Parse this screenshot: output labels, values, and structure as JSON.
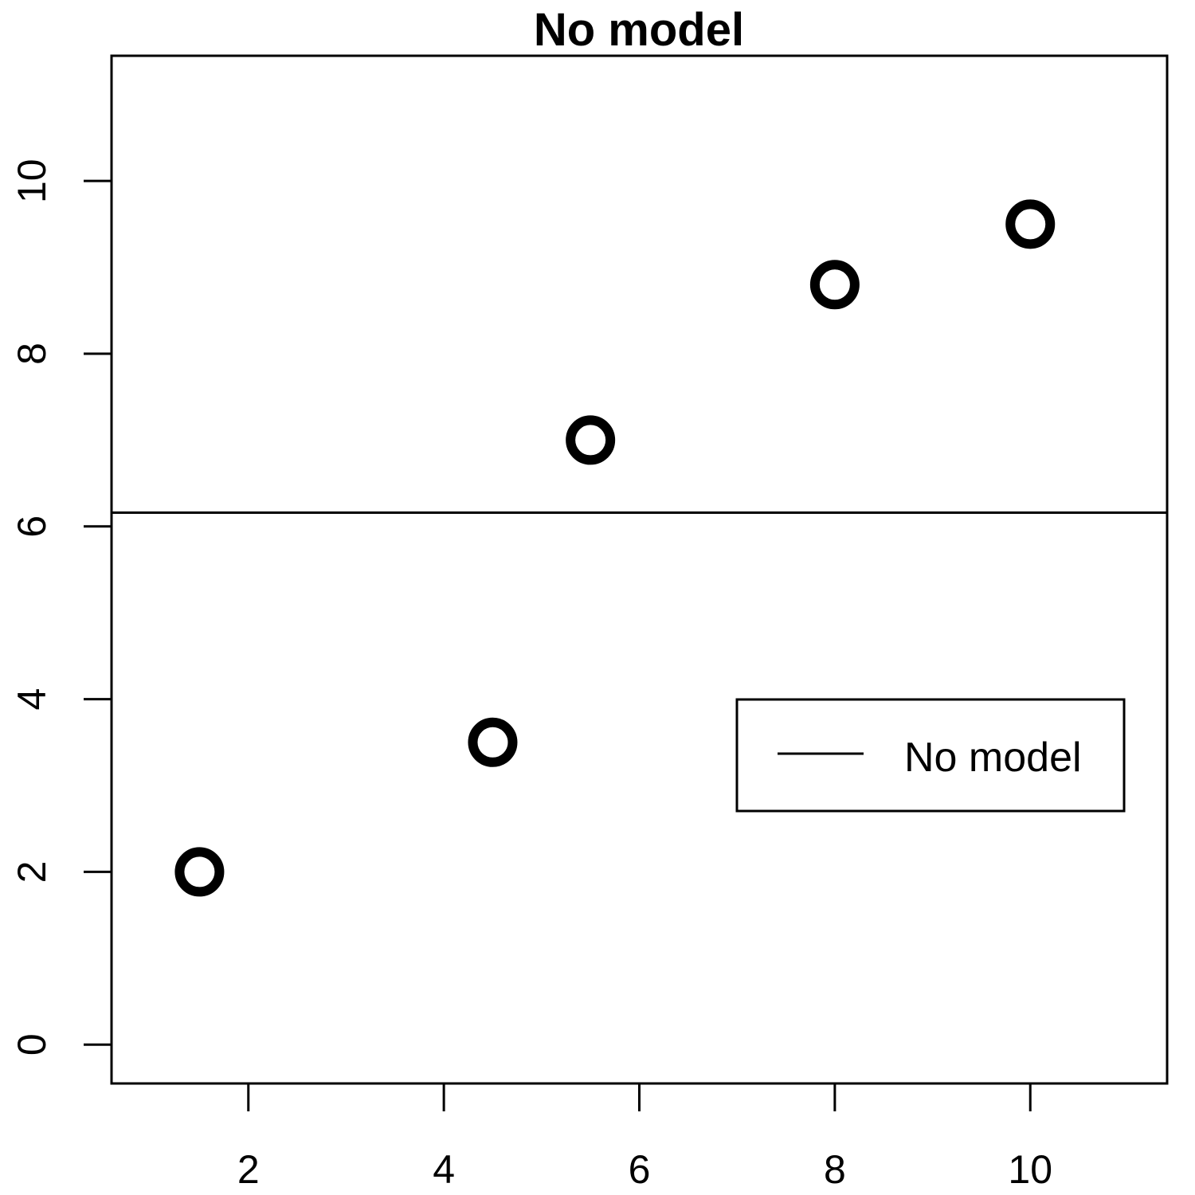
{
  "chart_data": {
    "type": "scatter",
    "title": "No model",
    "xlabel": "",
    "ylabel": "",
    "xlim": [
      0.6,
      11.4
    ],
    "ylim": [
      -0.45,
      11.45
    ],
    "x_ticks": [
      2,
      4,
      6,
      8,
      10
    ],
    "y_ticks": [
      0,
      2,
      4,
      6,
      8,
      10
    ],
    "grid": false,
    "points": [
      {
        "x": 1.5,
        "y": 2.0
      },
      {
        "x": 4.5,
        "y": 3.5
      },
      {
        "x": 5.5,
        "y": 7.0
      },
      {
        "x": 8.0,
        "y": 8.8
      },
      {
        "x": 10.0,
        "y": 9.5
      }
    ],
    "reference_line": {
      "type": "horizontal",
      "y": 6.16
    },
    "legend": {
      "position": "right",
      "entries": [
        {
          "label": "No model",
          "symbol": "line"
        }
      ]
    },
    "colors": {
      "marks": "#000000",
      "background": "#ffffff"
    }
  }
}
